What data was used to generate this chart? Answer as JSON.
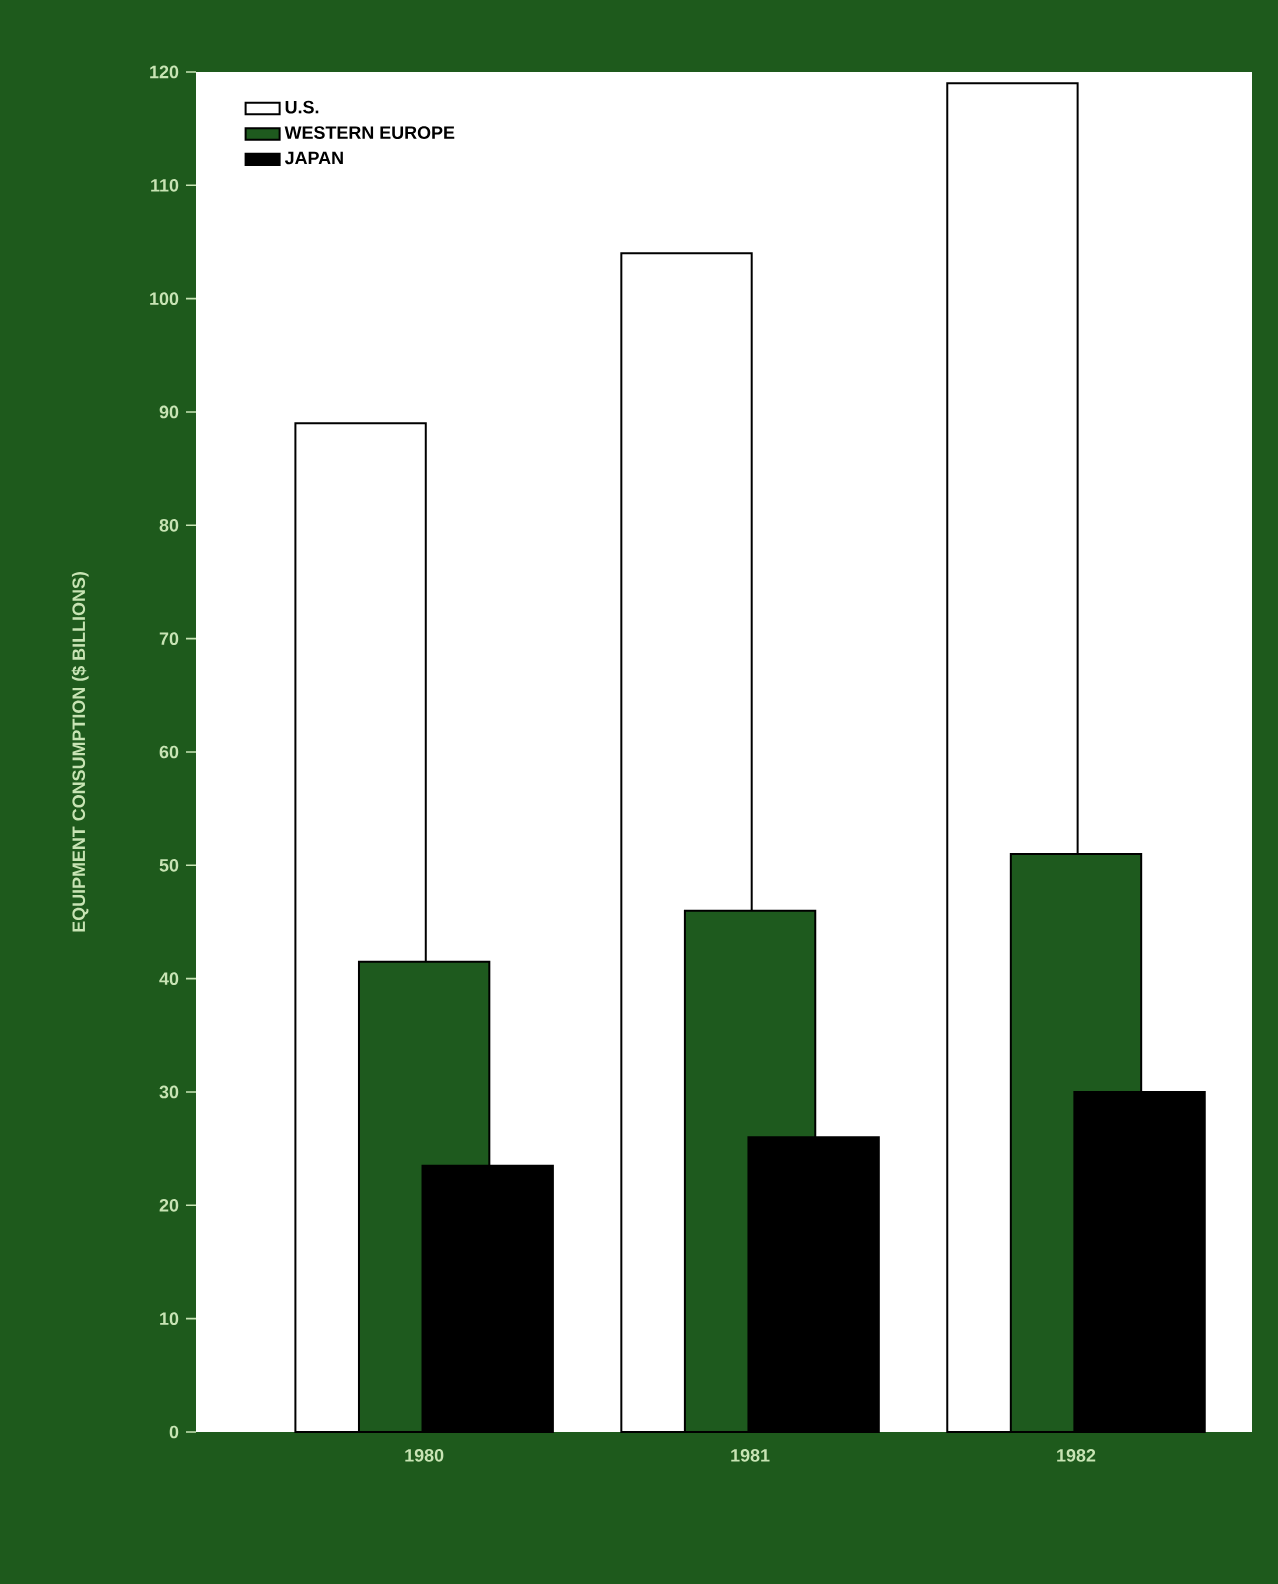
{
  "chart_data": {
    "type": "bar",
    "ylabel": "EQUIPMENT CONSUMPTION ($ BILLIONS)",
    "categories": [
      "1980",
      "1981",
      "1982"
    ],
    "series": [
      {
        "name": "U.S.",
        "color": "#ffffff",
        "values": [
          89,
          104,
          119
        ]
      },
      {
        "name": "WESTERN EUROPE",
        "color": "#1e5a1e",
        "values": [
          41.5,
          46,
          51
        ]
      },
      {
        "name": "JAPAN",
        "color": "#000000",
        "values": [
          23.5,
          26,
          30
        ]
      }
    ],
    "ylim": [
      0,
      120
    ],
    "yticks": [
      0,
      10,
      20,
      30,
      40,
      50,
      60,
      70,
      80,
      90,
      100,
      110,
      120
    ],
    "grid": false,
    "legend": "top left"
  }
}
